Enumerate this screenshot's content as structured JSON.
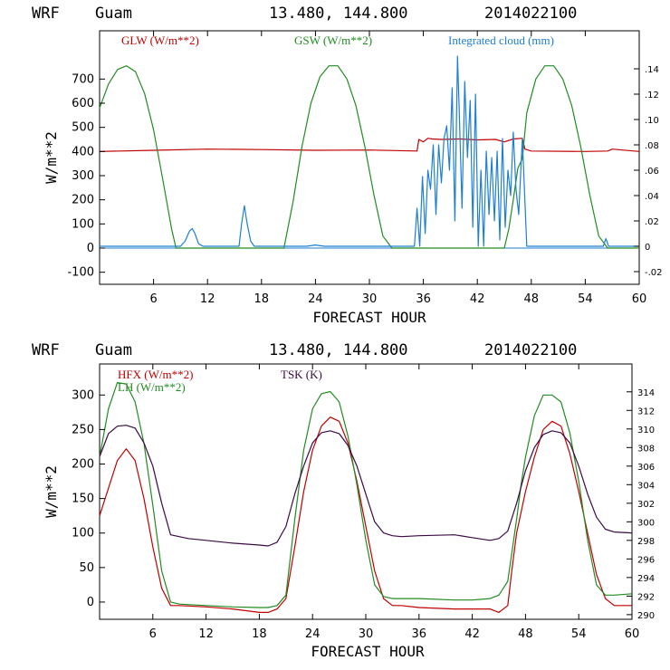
{
  "charts": [
    {
      "header": {
        "model": "WRF",
        "location": "Guam",
        "coords": "13.480, 144.800",
        "init": "2014022100"
      },
      "xlabel": "FORECAST HOUR",
      "ylabel": "W/m**2",
      "legend": [
        {
          "label": "GLW (W/m**2)",
          "color": "#c00000"
        },
        {
          "label": "GSW (W/m**2)",
          "color": "#228b22"
        },
        {
          "label": "Integrated cloud (mm)",
          "color": "#1e7fd0"
        }
      ]
    },
    {
      "header": {
        "model": "WRF",
        "location": "Guam",
        "coords": "13.480, 144.800",
        "init": "2014022100"
      },
      "xlabel": "FORECAST HOUR",
      "ylabel": "W/m**2",
      "legend": [
        {
          "label": "HFX (W/m**2)",
          "color": "#c00000"
        },
        {
          "label": "LH  (W/m**2)",
          "color": "#228b22"
        },
        {
          "label": "TSK (K)",
          "color": "#3b0a45"
        }
      ]
    }
  ],
  "chart_data": [
    {
      "type": "line",
      "title": "WRF Guam 13.480, 144.800 2014022100",
      "xlabel": "FORECAST HOUR",
      "ylabel": "W/m**2",
      "xlim": [
        0,
        60
      ],
      "ylim": [
        -150,
        900
      ],
      "y2lim": [
        -0.03,
        0.17
      ],
      "xticks": [
        "6",
        "12",
        "18",
        "24",
        "30",
        "36",
        "42",
        "48",
        "54",
        "60"
      ],
      "yticks": [
        "-100",
        "0",
        "100",
        "200",
        "300",
        "400",
        "500",
        "600",
        "700"
      ],
      "y2ticks": [
        "-.02",
        "0",
        ".02",
        ".04",
        ".06",
        ".08",
        ".10",
        ".12",
        ".14"
      ],
      "series": [
        {
          "name": "GLW (W/m**2)",
          "axis": "left",
          "x": [
            0,
            6,
            12,
            18,
            24,
            30,
            35.3,
            35.5,
            36,
            36.5,
            37,
            38,
            40,
            42,
            44,
            45,
            46,
            47,
            47.3,
            48,
            54,
            56.5,
            57,
            60
          ],
          "y": [
            400,
            405,
            410,
            408,
            405,
            406,
            402,
            450,
            440,
            455,
            452,
            450,
            452,
            448,
            450,
            440,
            452,
            455,
            410,
            402,
            400,
            402,
            410,
            400
          ]
        },
        {
          "name": "GSW (W/m**2)",
          "axis": "left",
          "x": [
            0,
            1,
            2,
            3,
            4,
            5,
            6,
            7,
            8,
            8.5,
            9,
            20.5,
            21.5,
            22.5,
            23.5,
            24.5,
            25.5,
            26.5,
            27.5,
            28.5,
            29.5,
            30.5,
            31.5,
            32.5,
            33,
            45,
            45.5,
            46,
            46.5,
            47,
            47.5,
            48.5,
            49.5,
            50.5,
            51.5,
            52.5,
            53.5,
            54.5,
            55.5,
            56.5,
            57,
            60
          ],
          "y": [
            580,
            680,
            740,
            755,
            730,
            640,
            490,
            290,
            80,
            0,
            0,
            0,
            190,
            420,
            600,
            710,
            755,
            755,
            700,
            590,
            420,
            220,
            50,
            0,
            0,
            0,
            80,
            200,
            330,
            370,
            560,
            700,
            755,
            755,
            700,
            590,
            420,
            220,
            50,
            0,
            0,
            0
          ]
        },
        {
          "name": "Integrated cloud (mm)",
          "axis": "right",
          "x": [
            0,
            9,
            9.5,
            10,
            10.3,
            10.6,
            11,
            11.5,
            15.5,
            15.8,
            16.1,
            16.4,
            16.8,
            17.2,
            23,
            24,
            25,
            35,
            35.3,
            35.6,
            35.9,
            36.2,
            36.5,
            36.8,
            37.1,
            37.4,
            37.7,
            38,
            38.3,
            38.6,
            38.9,
            39.2,
            39.5,
            39.8,
            40,
            40.3,
            40.6,
            40.9,
            41.2,
            41.5,
            41.8,
            42.1,
            42.4,
            42.7,
            43,
            43.3,
            43.6,
            43.9,
            44.2,
            44.5,
            44.8,
            45.1,
            45.4,
            45.7,
            46,
            46.3,
            46.6,
            47,
            47.5,
            56,
            56.3,
            56.6,
            57,
            60
          ],
          "y": [
            0,
            0,
            0.004,
            0.012,
            0.014,
            0.01,
            0.002,
            0,
            0,
            0.018,
            0.032,
            0.018,
            0.004,
            0,
            0,
            0.001,
            0,
            0,
            0.03,
            0,
            0.055,
            0.01,
            0.06,
            0.045,
            0.08,
            0.025,
            0.08,
            0.05,
            0.085,
            0.095,
            0.06,
            0.125,
            0.02,
            0.15,
            0.105,
            0.03,
            0.13,
            0.07,
            0.115,
            0.015,
            0.12,
            0,
            0.06,
            0,
            0.075,
            0.025,
            0.07,
            0.02,
            0.075,
            0.005,
            0.085,
            0.015,
            0.06,
            0.04,
            0.09,
            0.045,
            0.025,
            0.085,
            0,
            0,
            0.006,
            0,
            0,
            0
          ]
        }
      ]
    },
    {
      "type": "line",
      "title": "WRF Guam 13.480, 144.800 2014022100",
      "xlabel": "FORECAST HOUR",
      "ylabel": "W/m**2",
      "xlim": [
        0,
        60
      ],
      "ylim": [
        -25,
        345
      ],
      "y2lim": [
        289.5,
        317
      ],
      "xticks": [
        "6",
        "12",
        "18",
        "24",
        "30",
        "36",
        "42",
        "48",
        "54",
        "60"
      ],
      "yticks": [
        "0",
        "50",
        "100",
        "150",
        "200",
        "250",
        "300"
      ],
      "y2ticks": [
        "290",
        "292",
        "294",
        "296",
        "298",
        "300",
        "302",
        "304",
        "306",
        "308",
        "310",
        "312",
        "314"
      ],
      "series": [
        {
          "name": "HFX (W/m**2)",
          "axis": "left",
          "x": [
            0,
            1,
            2,
            3,
            4,
            5,
            6,
            7,
            8,
            9,
            12,
            15,
            18,
            19,
            20,
            21,
            22,
            23,
            24,
            25,
            26,
            27,
            28,
            29,
            30,
            31,
            32,
            33,
            34,
            36,
            40,
            42,
            44,
            45,
            46,
            46.5,
            47,
            47.5,
            48,
            49,
            50,
            51,
            52,
            53,
            54,
            55,
            56,
            57,
            58,
            60
          ],
          "y": [
            125,
            165,
            205,
            222,
            205,
            150,
            80,
            20,
            -5,
            -5,
            -7,
            -10,
            -15,
            -15,
            -10,
            5,
            80,
            160,
            220,
            255,
            268,
            262,
            230,
            175,
            110,
            45,
            5,
            -5,
            -5,
            -8,
            -10,
            -10,
            -10,
            -15,
            -5,
            50,
            100,
            130,
            160,
            210,
            250,
            262,
            255,
            215,
            160,
            100,
            40,
            5,
            -5,
            -5
          ]
        },
        {
          "name": "LH  (W/m**2)",
          "axis": "left",
          "x": [
            0,
            1,
            2,
            3,
            4,
            5,
            6,
            7,
            8,
            9,
            12,
            15,
            18,
            19,
            20,
            21,
            22,
            23,
            24,
            25,
            26,
            27,
            28,
            29,
            30,
            31,
            32,
            33,
            34,
            36,
            40,
            42,
            44,
            45,
            46,
            46.5,
            47,
            47.5,
            48,
            49,
            50,
            51,
            52,
            53,
            54,
            55,
            56,
            57,
            58,
            60
          ],
          "y": [
            210,
            280,
            318,
            316,
            290,
            230,
            140,
            45,
            0,
            -3,
            -5,
            -7,
            -8,
            -8,
            -5,
            10,
            120,
            220,
            280,
            302,
            305,
            290,
            240,
            170,
            90,
            25,
            8,
            5,
            5,
            5,
            3,
            3,
            5,
            10,
            30,
            75,
            120,
            170,
            210,
            270,
            300,
            300,
            290,
            245,
            175,
            90,
            25,
            10,
            10,
            12
          ]
        },
        {
          "name": "TSK (K)",
          "axis": "right",
          "x": [
            0,
            1,
            2,
            3,
            4,
            5,
            6,
            7,
            8,
            10,
            12,
            15,
            18,
            19,
            20,
            21,
            22,
            23,
            24,
            25,
            26,
            27,
            28,
            29,
            30,
            31,
            32,
            33,
            34,
            36,
            40,
            42,
            44,
            45,
            46,
            47,
            48,
            49,
            50,
            51,
            52,
            53,
            54,
            55,
            56,
            57,
            58,
            60
          ],
          "y": [
            307,
            309.5,
            310.3,
            310.4,
            310.1,
            308.5,
            306,
            302,
            298.6,
            298.2,
            298,
            297.7,
            297.5,
            297.4,
            297.8,
            299.5,
            303,
            306,
            308.5,
            309.6,
            309.8,
            309.5,
            308.2,
            306,
            303,
            300,
            298.8,
            298.5,
            298.4,
            298.5,
            298.6,
            298.3,
            298,
            298.2,
            299,
            302,
            305.5,
            308,
            309.4,
            309.8,
            309.6,
            308.5,
            306,
            303,
            300.5,
            299.2,
            298.9,
            298.8
          ]
        }
      ]
    }
  ]
}
